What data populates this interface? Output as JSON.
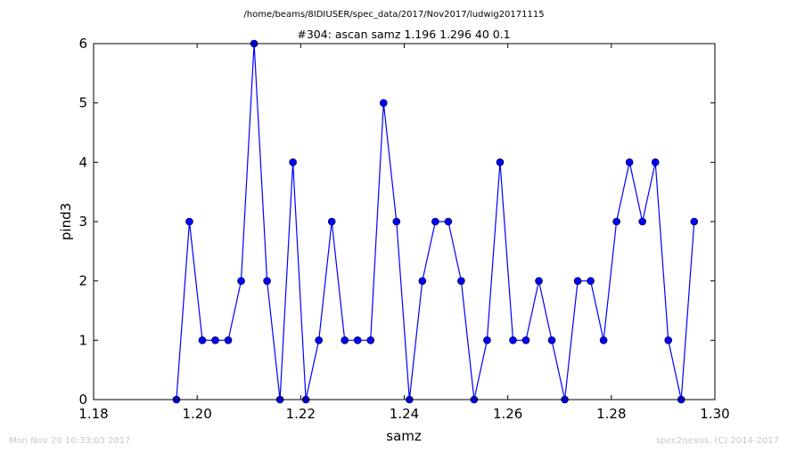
{
  "header": {
    "path": "/home/beams/8IDIUSER/spec_data/2017/Nov2017/ludwig20171115",
    "title": "#304: ascan  samz 1.196 1.296  40 0.1"
  },
  "footer": {
    "timestamp": "Mon Nov 20 10:33:03 2017",
    "credit": "spec2nexus, (C) 2014-2017"
  },
  "chart_data": {
    "type": "line",
    "title": "#304: ascan  samz 1.196 1.296  40 0.1",
    "xlabel": "samz",
    "ylabel": "pind3",
    "xlim": [
      1.18,
      1.3
    ],
    "ylim": [
      0,
      6
    ],
    "xticks": [
      "1.18",
      "1.20",
      "1.22",
      "1.24",
      "1.26",
      "1.28",
      "1.30"
    ],
    "yticks": [
      "0",
      "1",
      "2",
      "3",
      "4",
      "5",
      "6"
    ],
    "grid": false,
    "line_color": "#0000ff",
    "marker": "circle",
    "x": [
      1.196,
      1.1985,
      1.201,
      1.2035,
      1.206,
      1.2085,
      1.211,
      1.2135,
      1.216,
      1.2185,
      1.221,
      1.2235,
      1.226,
      1.2285,
      1.231,
      1.2335,
      1.236,
      1.2385,
      1.241,
      1.2435,
      1.246,
      1.2485,
      1.251,
      1.2535,
      1.256,
      1.2585,
      1.261,
      1.2635,
      1.266,
      1.2685,
      1.271,
      1.2735,
      1.276,
      1.2785,
      1.281,
      1.2835,
      1.286,
      1.2885,
      1.291,
      1.2935,
      1.296
    ],
    "y": [
      0,
      3,
      1,
      1,
      1,
      2,
      6,
      2,
      0,
      4,
      0,
      1,
      3,
      1,
      1,
      1,
      5,
      3,
      0,
      2,
      3,
      3,
      2,
      0,
      1,
      4,
      1,
      1,
      2,
      1,
      0,
      2,
      2,
      1,
      3,
      4,
      3,
      4,
      1,
      0,
      3
    ]
  }
}
